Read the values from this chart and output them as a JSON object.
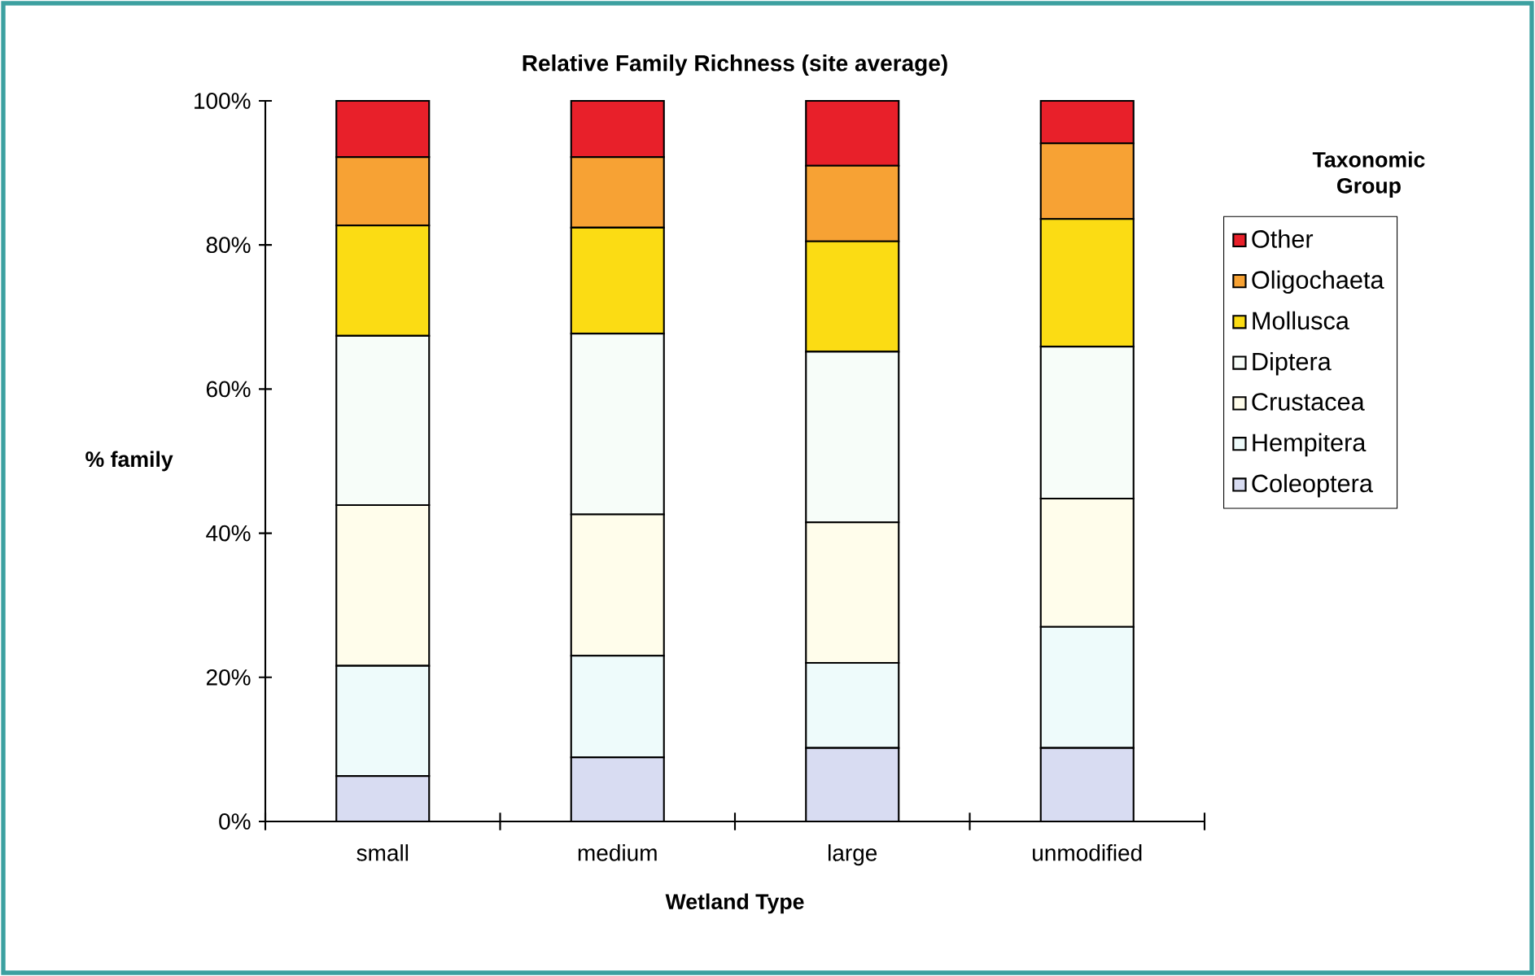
{
  "chart_data": {
    "type": "bar",
    "stacked": true,
    "title": "Relative Family Richness (site average)",
    "xlabel": "Wetland Type",
    "ylabel": "% family",
    "legend_title": "Taxonomic Group",
    "legend": "right",
    "grid": false,
    "categories": [
      "small",
      "medium",
      "large",
      "unmodified"
    ],
    "ylim": [
      0,
      100
    ],
    "yticks": [
      {
        "value": 0,
        "label": "0%"
      },
      {
        "value": 20,
        "label": "20%"
      },
      {
        "value": 40,
        "label": "40%"
      },
      {
        "value": 60,
        "label": "60%"
      },
      {
        "value": 80,
        "label": "80%"
      },
      {
        "value": 100,
        "label": "100%"
      }
    ],
    "series": [
      {
        "name": "Coleoptera",
        "color": "#d8dcf2",
        "values": [
          6.3,
          8.9,
          10.2,
          10.2
        ]
      },
      {
        "name": "Hempitera",
        "color": "#eefbfb",
        "values": [
          15.3,
          14.1,
          11.8,
          16.8
        ]
      },
      {
        "name": "Crustacea",
        "color": "#fffdeb",
        "values": [
          22.3,
          19.6,
          19.5,
          17.8
        ]
      },
      {
        "name": "Diptera",
        "color": "#f7fdf9",
        "values": [
          23.5,
          25.1,
          23.7,
          21.1
        ]
      },
      {
        "name": "Mollusca",
        "color": "#fbdc14",
        "values": [
          15.3,
          14.7,
          15.3,
          17.7
        ]
      },
      {
        "name": "Oligochaeta",
        "color": "#f7a234",
        "values": [
          9.5,
          9.8,
          10.5,
          10.5
        ]
      },
      {
        "name": "Other",
        "color": "#e8202a",
        "values": [
          7.8,
          7.8,
          9.0,
          5.9
        ]
      }
    ]
  }
}
